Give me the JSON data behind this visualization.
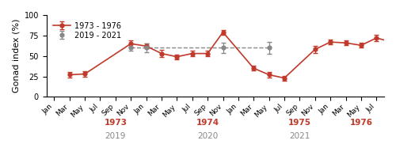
{
  "ylabel": "Gonad index (%)",
  "ylim": [
    0,
    100
  ],
  "yticks": [
    0,
    25,
    50,
    75,
    100
  ],
  "red_series_label": "1973 - 1976",
  "grey_series_label": "2019 - 2021",
  "red_color": "#c0392b",
  "grey_color": "#888888",
  "month_labels": [
    "Jan",
    "Mar",
    "May",
    "Jul",
    "Sep",
    "Nov",
    "Jan",
    "Mar",
    "May",
    "Jul",
    "Sep",
    "Nov",
    "Jan",
    "Mar",
    "May",
    "Jul",
    "Sep",
    "Nov",
    "Jan",
    "Mar",
    "May",
    "Jul"
  ],
  "red_x": [
    1,
    2,
    5,
    6,
    7,
    8,
    9,
    10,
    11,
    13,
    14,
    15,
    17,
    18,
    19,
    20,
    21,
    22
  ],
  "red_y": [
    27,
    28,
    65,
    62,
    53,
    49,
    53,
    53,
    79,
    35,
    27,
    23,
    58,
    67,
    66,
    63,
    72,
    67
  ],
  "red_yerr": [
    3,
    3,
    4,
    3,
    4,
    3,
    3,
    3,
    3,
    3,
    3,
    3,
    4,
    3,
    3,
    3,
    4,
    3
  ],
  "grey_x": [
    5,
    6,
    11,
    14
  ],
  "grey_y": [
    60,
    60,
    60,
    60
  ],
  "grey_yerr": [
    4,
    5,
    6,
    7
  ],
  "dashed_line_x": [
    5,
    14
  ],
  "dashed_line_y": [
    60,
    60
  ],
  "year_positions": [
    {
      "x": 4,
      "label": "1973",
      "color": "#c0392b",
      "row": 0
    },
    {
      "x": 4,
      "label": "2019",
      "color": "#888888",
      "row": 1
    },
    {
      "x": 10,
      "label": "1974",
      "color": "#c0392b",
      "row": 0
    },
    {
      "x": 10,
      "label": "2020",
      "color": "#888888",
      "row": 1
    },
    {
      "x": 16,
      "label": "1975",
      "color": "#c0392b",
      "row": 0
    },
    {
      "x": 16,
      "label": "2021",
      "color": "#888888",
      "row": 1
    },
    {
      "x": 20,
      "label": "1976",
      "color": "#c0392b",
      "row": 0
    }
  ],
  "bg_color": "#ffffff",
  "figsize": [
    5.0,
    2.11
  ],
  "dpi": 100
}
